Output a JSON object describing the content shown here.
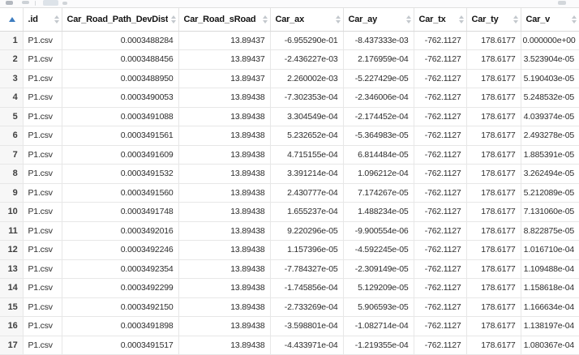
{
  "table": {
    "sorted_column": "row-number",
    "sort_direction": "ascending",
    "columns": [
      {
        "key": "id",
        "label": ".id"
      },
      {
        "key": "devdist",
        "label": "Car_Road_Path_DevDist"
      },
      {
        "key": "sroad",
        "label": "Car_Road_sRoad"
      },
      {
        "key": "ax",
        "label": "Car_ax"
      },
      {
        "key": "ay",
        "label": "Car_ay"
      },
      {
        "key": "tx",
        "label": "Car_tx"
      },
      {
        "key": "ty",
        "label": "Car_ty"
      },
      {
        "key": "v",
        "label": "Car_v"
      }
    ],
    "rows": [
      [
        "1",
        "P1.csv",
        "0.0003488284",
        "13.89437",
        "-6.955290e-01",
        "-8.437333e-03",
        "-762.1127",
        "178.6177",
        "0.000000e+00"
      ],
      [
        "2",
        "P1.csv",
        "0.0003488456",
        "13.89437",
        "-2.436227e-03",
        "2.176959e-04",
        "-762.1127",
        "178.6177",
        "3.523904e-05"
      ],
      [
        "3",
        "P1.csv",
        "0.0003488950",
        "13.89437",
        "2.260002e-03",
        "-5.227429e-05",
        "-762.1127",
        "178.6177",
        "5.190403e-05"
      ],
      [
        "4",
        "P1.csv",
        "0.0003490053",
        "13.89438",
        "-7.302353e-04",
        "-2.346006e-04",
        "-762.1127",
        "178.6177",
        "5.248532e-05"
      ],
      [
        "5",
        "P1.csv",
        "0.0003491088",
        "13.89438",
        "3.304549e-04",
        "-2.174452e-04",
        "-762.1127",
        "178.6177",
        "4.039374e-05"
      ],
      [
        "6",
        "P1.csv",
        "0.0003491561",
        "13.89438",
        "5.232652e-04",
        "-5.364983e-05",
        "-762.1127",
        "178.6177",
        "2.493278e-05"
      ],
      [
        "7",
        "P1.csv",
        "0.0003491609",
        "13.89438",
        "4.715155e-04",
        "6.814484e-05",
        "-762.1127",
        "178.6177",
        "1.885391e-05"
      ],
      [
        "8",
        "P1.csv",
        "0.0003491532",
        "13.89438",
        "3.391214e-04",
        "1.096212e-04",
        "-762.1127",
        "178.6177",
        "3.262494e-05"
      ],
      [
        "9",
        "P1.csv",
        "0.0003491560",
        "13.89438",
        "2.430777e-04",
        "7.174267e-05",
        "-762.1127",
        "178.6177",
        "5.212089e-05"
      ],
      [
        "10",
        "P1.csv",
        "0.0003491748",
        "13.89438",
        "1.655237e-04",
        "1.488234e-05",
        "-762.1127",
        "178.6177",
        "7.131060e-05"
      ],
      [
        "11",
        "P1.csv",
        "0.0003492016",
        "13.89438",
        "9.220296e-05",
        "-9.900554e-06",
        "-762.1127",
        "178.6177",
        "8.822875e-05"
      ],
      [
        "12",
        "P1.csv",
        "0.0003492246",
        "13.89438",
        "1.157396e-05",
        "-4.592245e-05",
        "-762.1127",
        "178.6177",
        "1.016710e-04"
      ],
      [
        "13",
        "P1.csv",
        "0.0003492354",
        "13.89438",
        "-7.784327e-05",
        "-2.309149e-05",
        "-762.1127",
        "178.6177",
        "1.109488e-04"
      ],
      [
        "14",
        "P1.csv",
        "0.0003492299",
        "13.89438",
        "-1.745856e-04",
        "5.129209e-05",
        "-762.1127",
        "178.6177",
        "1.158618e-04"
      ],
      [
        "15",
        "P1.csv",
        "0.0003492150",
        "13.89438",
        "-2.733269e-04",
        "5.906593e-05",
        "-762.1127",
        "178.6177",
        "1.166634e-04"
      ],
      [
        "16",
        "P1.csv",
        "0.0003491898",
        "13.89438",
        "-3.598801e-04",
        "-1.082714e-04",
        "-762.1127",
        "178.6177",
        "1.138197e-04"
      ],
      [
        "17",
        "P1.csv",
        "0.0003491517",
        "13.89438",
        "-4.433971e-04",
        "-1.219355e-04",
        "-762.1127",
        "178.6177",
        "1.080367e-04"
      ]
    ]
  },
  "icons": {
    "corner_sort": "sort-ascending-triangle",
    "column_sort": "sort-toggle-arrows"
  },
  "colors": {
    "sort_active_blue": "#3e7dc0",
    "sort_inactive_gray": "#c3c8cd",
    "grid_border": "#e7e7e7",
    "rownum_background": "#f7f7f7",
    "header_text": "#141414",
    "cell_text": "#2d2d2d"
  }
}
